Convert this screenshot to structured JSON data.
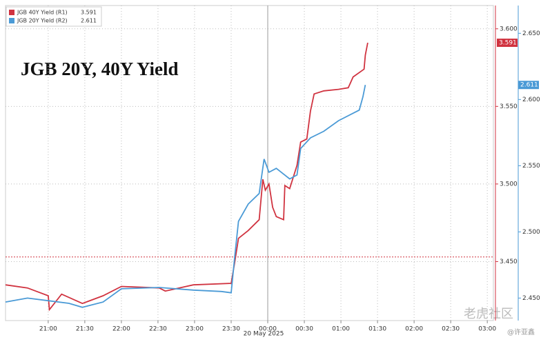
{
  "chart_data": {
    "type": "line",
    "title": "JGB 20Y, 40Y Yield",
    "x_date_label": "20 May 2025",
    "xlim": [
      0,
      400
    ],
    "xticks": [
      {
        "value": 35,
        "label": "21:00"
      },
      {
        "value": 65,
        "label": "21:30"
      },
      {
        "value": 95,
        "label": "22:00"
      },
      {
        "value": 125,
        "label": "22:30"
      },
      {
        "value": 155,
        "label": "23:00"
      },
      {
        "value": 185,
        "label": "23:30"
      },
      {
        "value": 215,
        "label": "00:00"
      },
      {
        "value": 245,
        "label": "00:30"
      },
      {
        "value": 275,
        "label": "01:00"
      },
      {
        "value": 305,
        "label": "01:30"
      },
      {
        "value": 335,
        "label": "02:00"
      },
      {
        "value": 365,
        "label": "02:30"
      },
      {
        "value": 395,
        "label": "03:00"
      }
    ],
    "ylim": [
      3.412,
      3.615
    ],
    "yticks": [
      {
        "value": 3.45,
        "label": "3.450"
      },
      {
        "value": 3.5,
        "label": "3.500"
      },
      {
        "value": 3.55,
        "label": "3.550"
      },
      {
        "value": 3.6,
        "label": "3.600"
      }
    ],
    "y2lim": [
      2.433,
      2.671
    ],
    "y2ticks": [
      {
        "value": 2.45,
        "label": "2.450"
      },
      {
        "value": 2.5,
        "label": "2.500"
      },
      {
        "value": 2.55,
        "label": "2.550"
      },
      {
        "value": 2.6,
        "label": "2.600"
      },
      {
        "value": 2.65,
        "label": "2.650"
      }
    ],
    "grid": true,
    "ref_line": 3.453,
    "series": [
      {
        "name": "JGB 40Y Yield (R1)",
        "color": "#d0323f",
        "axis": "y",
        "x": [
          0,
          18,
          35,
          36,
          46,
          63,
          80,
          95,
          126,
          131,
          154,
          185,
          188,
          191,
          199,
          208,
          211,
          213,
          216,
          219,
          222,
          228,
          229,
          233,
          239,
          242,
          247,
          250,
          253,
          261,
          273,
          281,
          285,
          294,
          295,
          297
        ],
        "values": [
          3.435,
          3.433,
          3.428,
          3.419,
          3.429,
          3.423,
          3.428,
          3.434,
          3.433,
          3.431,
          3.435,
          3.436,
          3.45,
          3.465,
          3.47,
          3.477,
          3.503,
          3.496,
          3.5,
          3.485,
          3.479,
          3.477,
          3.499,
          3.497,
          3.512,
          3.527,
          3.529,
          3.547,
          3.558,
          3.56,
          3.561,
          3.562,
          3.569,
          3.574,
          3.583,
          3.591
        ]
      },
      {
        "name": "JGB 20Y Yield (R2)",
        "color": "#4a9ad6",
        "axis": "y2",
        "x": [
          0,
          18,
          35,
          52,
          63,
          80,
          95,
          126,
          154,
          177,
          185,
          188,
          191,
          199,
          208,
          212,
          216,
          222,
          233,
          239,
          242,
          250,
          261,
          273,
          290,
          293,
          295
        ],
        "values": [
          2.447,
          2.45,
          2.448,
          2.446,
          2.443,
          2.447,
          2.457,
          2.458,
          2.456,
          2.455,
          2.454,
          2.482,
          2.508,
          2.521,
          2.529,
          2.555,
          2.545,
          2.548,
          2.54,
          2.543,
          2.563,
          2.571,
          2.576,
          2.584,
          2.592,
          2.602,
          2.611
        ]
      }
    ],
    "watermark": "老虎社区",
    "credit": "@许亚鑫"
  }
}
